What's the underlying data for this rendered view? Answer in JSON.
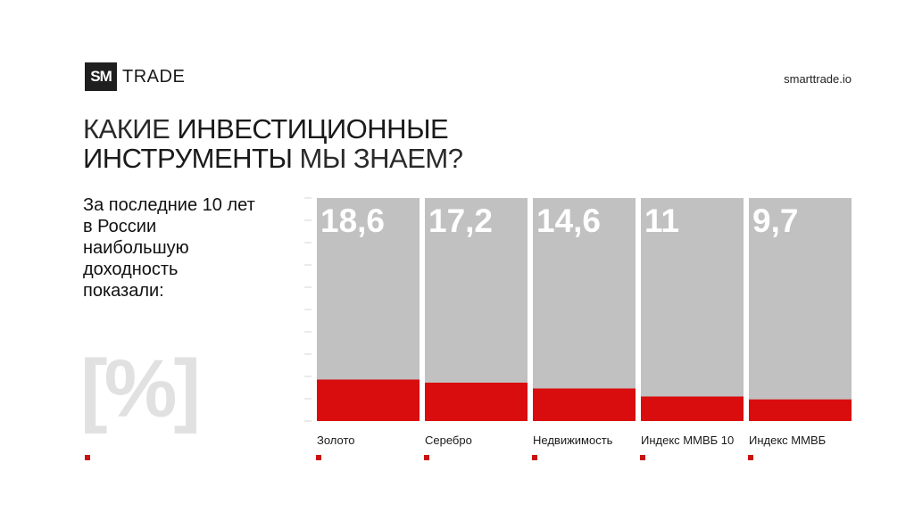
{
  "brand": {
    "logo_mark": "SM",
    "logo_text": "TRADE",
    "site": "smarttrade.io"
  },
  "title": {
    "line1_light": "КАКИЕ ",
    "line1_strong": "ИНВЕСТИЦИОННЫЕ",
    "line2_strong": "ИНСТРУМЕНТЫ ",
    "line2_light": "МЫ ЗНАЕМ?"
  },
  "note": "За последние 10 лет в России наибольшую доходность показали:",
  "unit_mark": "[%]",
  "colors": {
    "bar_bg": "#c1c1c1",
    "bar_fill": "#d90d0d",
    "accent": "#cc1111"
  },
  "chart_data": {
    "type": "bar",
    "categories": [
      "Золото",
      "Серебро",
      "Недвижимость",
      "Индекс ММВБ 10",
      "Индекс ММВБ"
    ],
    "values": [
      18.6,
      17.2,
      14.6,
      11,
      9.7
    ],
    "value_labels": [
      "18,6",
      "17,2",
      "14,6",
      "11",
      "9,7"
    ],
    "ylim": [
      0,
      100
    ],
    "grid": false
  }
}
